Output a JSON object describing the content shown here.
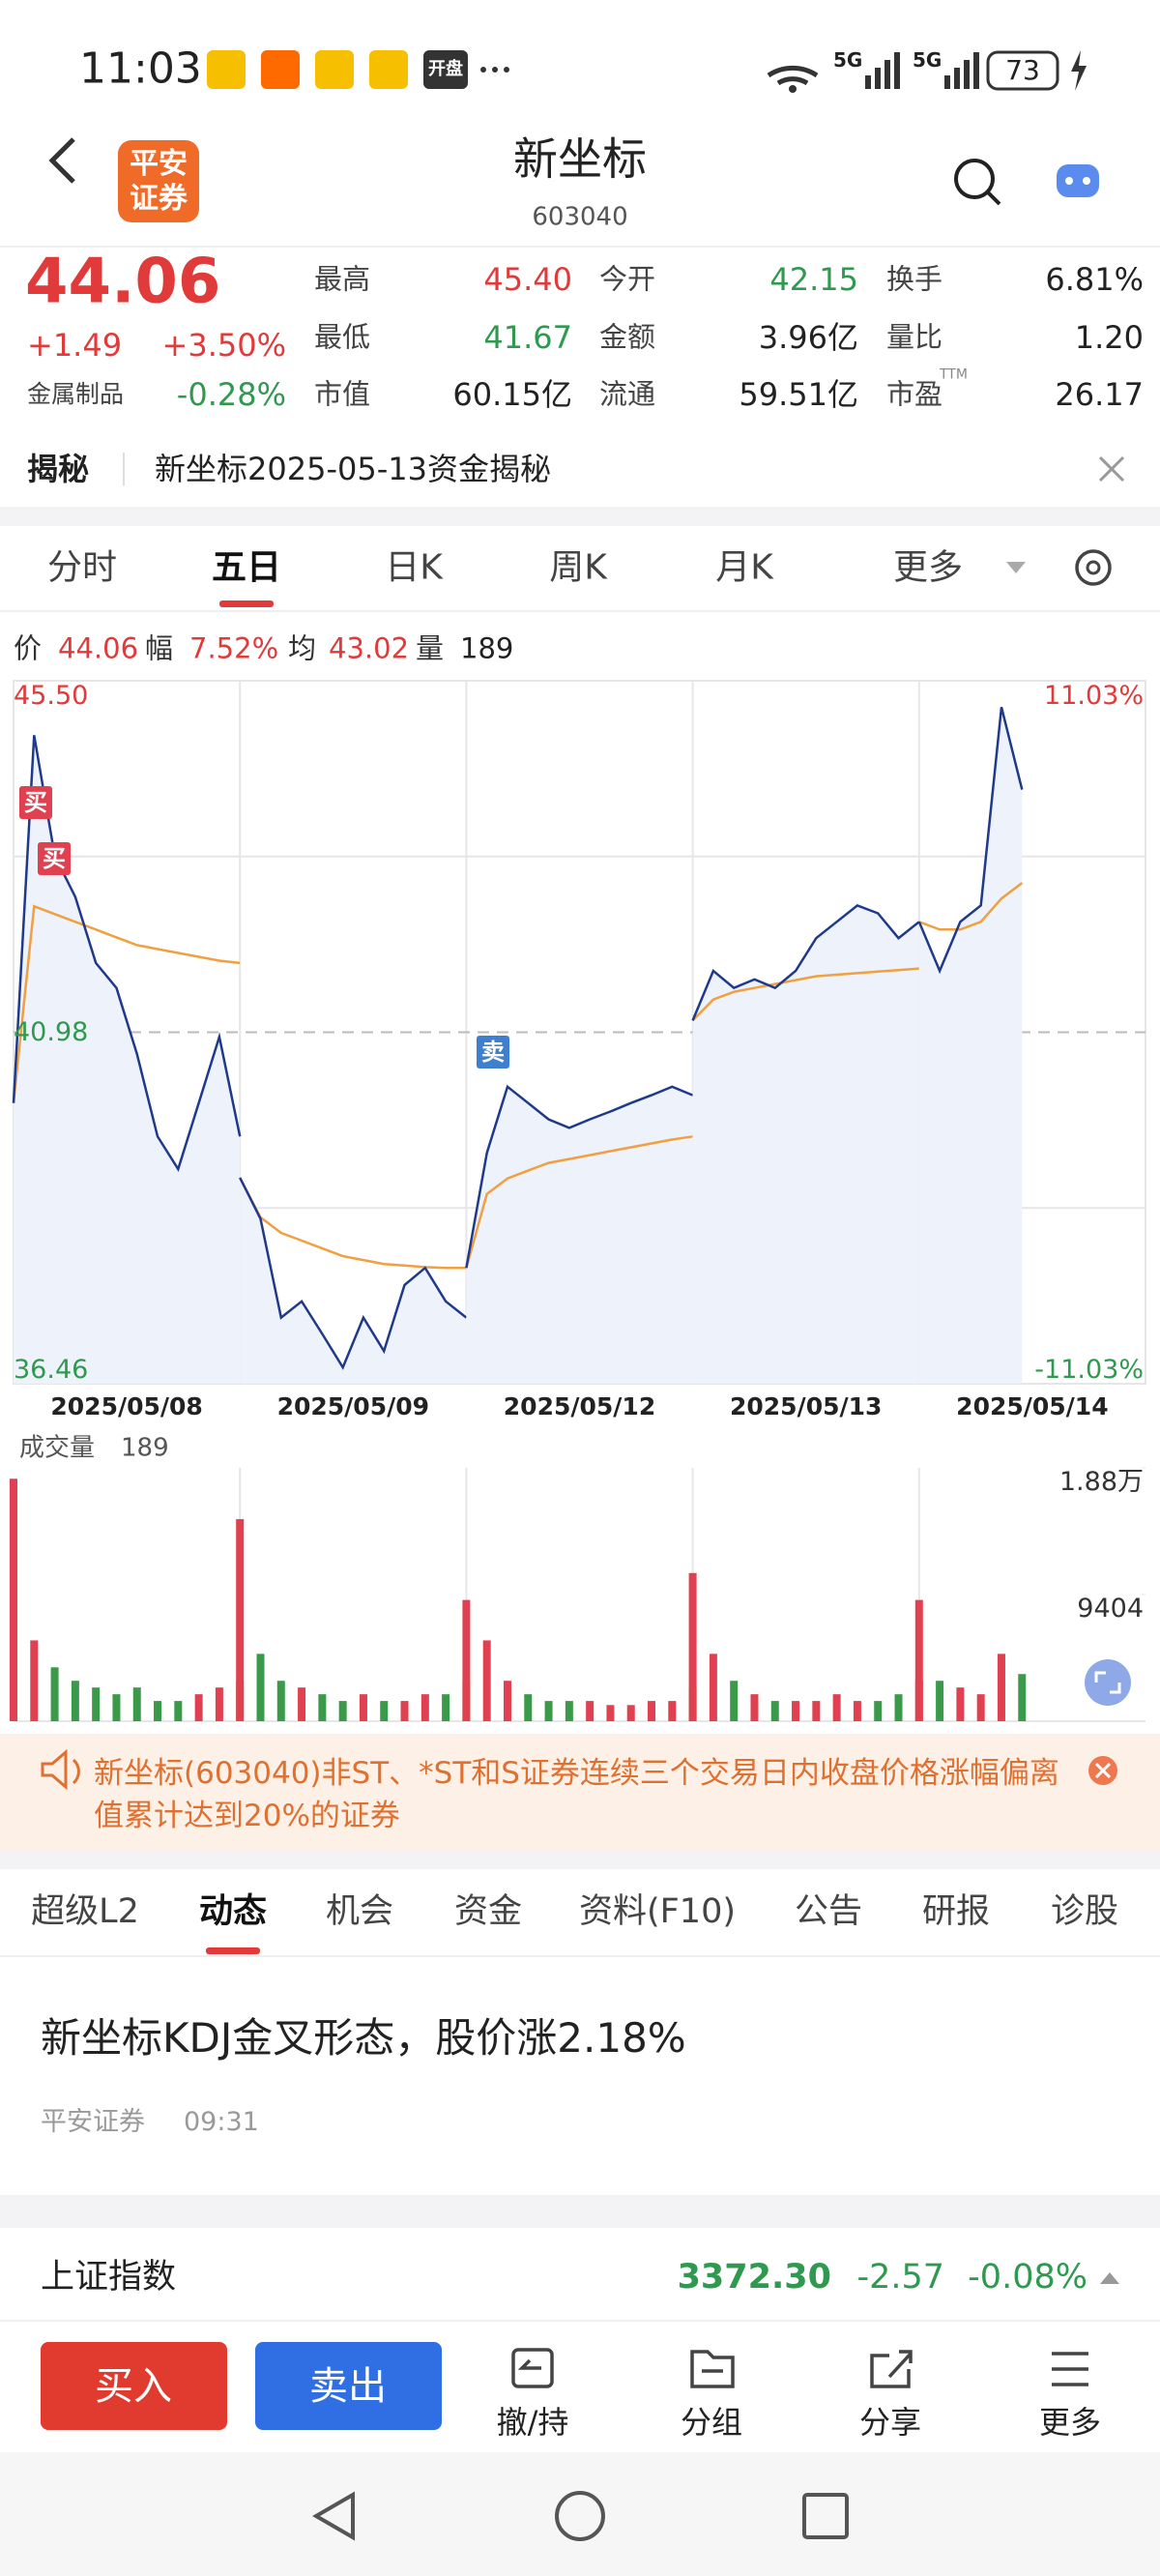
{
  "status_bar": {
    "time": "11:03",
    "network": [
      "5G",
      "5G"
    ],
    "battery": "73",
    "apps": [
      "开盘"
    ]
  },
  "header": {
    "title": "新坐标",
    "code": "603040",
    "logo": [
      "平安",
      "证券"
    ]
  },
  "quote": {
    "price": "44.06",
    "change": "+1.49",
    "change_pct": "+3.50%",
    "sector": "金属制品",
    "sector_pct": "-0.28%",
    "columns": [
      [
        {
          "label": "最高",
          "value": "45.40"
        },
        {
          "label": "最低",
          "value": "41.67"
        },
        {
          "label": "市值",
          "value": "60.15亿"
        }
      ],
      [
        {
          "label": "今开",
          "value": "42.15"
        },
        {
          "label": "金额",
          "value": "3.96亿"
        },
        {
          "label": "流通",
          "value": "59.51亿"
        }
      ],
      [
        {
          "label": "换手",
          "value": "6.81%"
        },
        {
          "label": "量比",
          "value": "1.20"
        },
        {
          "label": "市盈",
          "value": "26.17",
          "sup": "TTM"
        }
      ]
    ]
  },
  "banner": {
    "tag": "揭秘",
    "text": "新坐标2025-05-13资金揭秘"
  },
  "chart_tabs": [
    "分时",
    "五日",
    "日K",
    "周K",
    "月K",
    "更多"
  ],
  "active_chart_tab": 1,
  "quote_line": [
    {
      "label": "价",
      "value": "44.06"
    },
    {
      "label": "幅",
      "value": "7.52%"
    },
    {
      "label": "均",
      "value": "43.02"
    },
    {
      "label": "量",
      "value": "189"
    }
  ],
  "chart_data": {
    "type": "line",
    "ylim": [
      36.46,
      45.5
    ],
    "yticks": [
      {
        "value": 45.5,
        "label": "45.50"
      },
      40.98,
      36.46
    ],
    "y2lim": [
      -11.03,
      11.03
    ],
    "y2ticks": [
      {
        "value": 11.03,
        "label": "11.03%"
      },
      {
        "value": -11.03,
        "label": "-11.03%"
      }
    ],
    "grid": true,
    "colors": {
      "price": "#1f3a8a",
      "avg": "#f0a040",
      "up": "#e04050",
      "down": "#3a9a4a"
    },
    "signals": [
      "买",
      "买",
      "卖"
    ],
    "days": [
      {
        "date": "2025/05/08",
        "price": [
          40.07,
          44.8,
          43.25,
          42.72,
          41.87,
          41.55,
          40.7,
          39.64,
          39.22,
          40.07,
          40.92,
          39.64
        ],
        "avg": [
          40.07,
          42.6,
          42.5,
          42.4,
          42.3,
          42.2,
          42.1,
          42.05,
          42.0,
          41.95,
          41.9,
          41.87
        ],
        "volume": [
          18000,
          6000,
          4000,
          3000,
          2500,
          2000,
          2500,
          1500,
          1500,
          2000,
          2500,
          3000
        ]
      },
      {
        "date": "2025/05/09",
        "price": [
          39.11,
          38.58,
          37.31,
          37.52,
          37.1,
          36.67,
          37.31,
          36.88,
          37.73,
          37.95,
          37.52,
          37.31
        ],
        "avg": [
          39.11,
          38.6,
          38.4,
          38.3,
          38.2,
          38.1,
          38.05,
          38.0,
          37.98,
          37.96,
          37.95,
          37.95
        ],
        "volume": [
          15000,
          5000,
          3000,
          2500,
          2000,
          1500,
          2000,
          1500,
          1500,
          2000,
          2000,
          3000
        ]
      },
      {
        "date": "2025/05/12",
        "price": [
          37.95,
          39.43,
          40.28,
          40.07,
          39.86,
          39.75,
          39.86,
          39.96,
          40.07,
          40.17,
          40.28,
          40.17
        ],
        "avg": [
          37.95,
          38.9,
          39.1,
          39.2,
          39.3,
          39.35,
          39.4,
          39.45,
          39.5,
          39.55,
          39.6,
          39.64
        ],
        "volume": [
          9000,
          6000,
          3000,
          2000,
          1500,
          1500,
          1500,
          1200,
          1200,
          1500,
          1500,
          2500
        ]
      },
      {
        "date": "2025/05/13",
        "price": [
          41.13,
          41.77,
          41.55,
          41.66,
          41.55,
          41.77,
          42.19,
          42.4,
          42.61,
          42.51,
          42.19,
          42.4
        ],
        "avg": [
          41.13,
          41.4,
          41.5,
          41.55,
          41.6,
          41.65,
          41.7,
          41.72,
          41.74,
          41.76,
          41.78,
          41.8
        ],
        "volume": [
          11000,
          5000,
          3000,
          2000,
          1500,
          1500,
          1500,
          2000,
          1500,
          1500,
          2000,
          3000
        ]
      },
      {
        "date": "2025/05/14",
        "price": [
          42.4,
          41.77,
          42.4,
          42.61,
          45.16,
          44.1
        ],
        "avg": [
          42.4,
          42.3,
          42.3,
          42.4,
          42.7,
          42.9
        ],
        "volume": [
          9000,
          3000,
          2500,
          2000,
          5000,
          3500
        ]
      }
    ],
    "volume_title": "成交量",
    "volume_value": "189",
    "volume_lim": [
      0,
      18808
    ],
    "volume_ticks": [
      {
        "value": 18808,
        "label": "1.88万"
      },
      9404
    ]
  },
  "notice": {
    "text": "新坐标(603040)非ST、*ST和S证券连续三个交易日内收盘价格涨幅偏离值累计达到20%的证券"
  },
  "info_tabs": [
    "超级L2",
    "动态",
    "机会",
    "资金",
    "资料(F10)",
    "公告",
    "研报",
    "诊股"
  ],
  "active_info_tab": 1,
  "news": {
    "title": "新坐标KDJ金叉形态，股价涨2.18%",
    "source": "平安证券",
    "time": "09:31"
  },
  "index": {
    "name": "上证指数",
    "value": "3372.30",
    "change": "-2.57",
    "change_pct": "-0.08%"
  },
  "bottom_bar": {
    "buy": "买入",
    "sell": "卖出",
    "actions": [
      "撤/持",
      "分组",
      "分享",
      "更多"
    ]
  }
}
